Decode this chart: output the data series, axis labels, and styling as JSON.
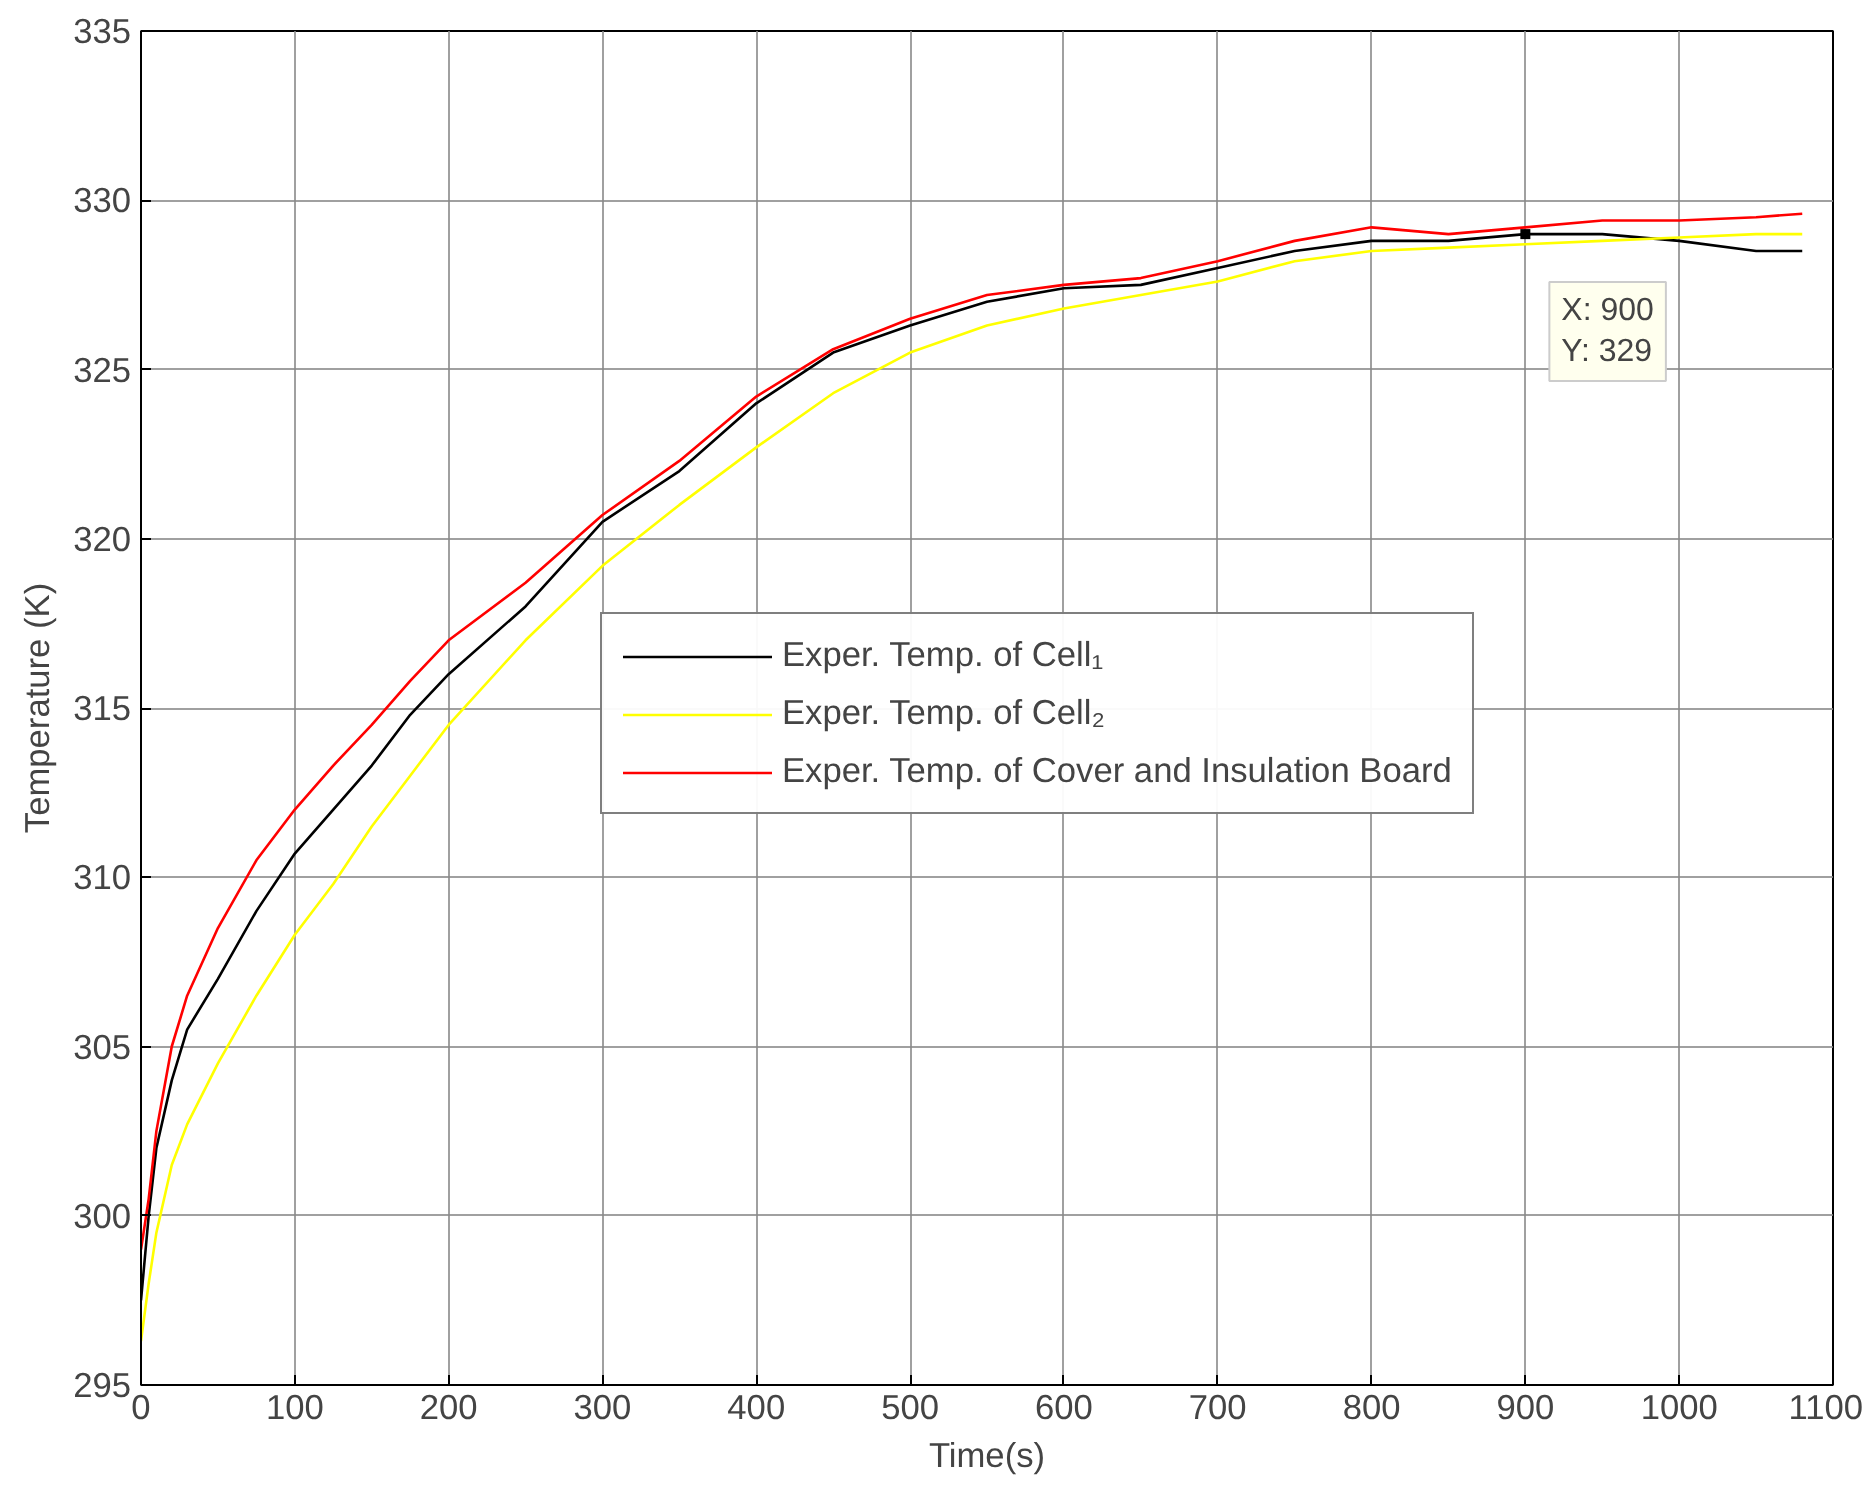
{
  "chart_data": {
    "type": "line",
    "xlabel": "Time(s)",
    "ylabel": "Temperature (K)",
    "x": [
      0,
      5,
      10,
      20,
      30,
      50,
      75,
      100,
      125,
      150,
      175,
      200,
      250,
      300,
      350,
      400,
      450,
      500,
      550,
      600,
      650,
      700,
      750,
      800,
      850,
      900,
      950,
      1000,
      1050,
      1080
    ],
    "series": [
      {
        "name": "Exper. Temp. of Cell₁",
        "color": "#000000",
        "values": [
          297.5,
          300,
          302,
          304,
          305.5,
          307,
          309,
          310.7,
          312,
          313.3,
          314.8,
          316,
          318,
          320.5,
          322,
          324,
          325.5,
          326.3,
          327,
          327.4,
          327.5,
          328,
          328.5,
          328.8,
          328.8,
          329,
          329,
          328.8,
          328.5,
          328.5
        ]
      },
      {
        "name": "Exper. Temp. of Cell₂",
        "color": "#ffff00",
        "values": [
          296.3,
          298,
          299.5,
          301.5,
          302.7,
          304.5,
          306.5,
          308.3,
          309.8,
          311.5,
          313,
          314.5,
          317,
          319.2,
          321,
          322.7,
          324.3,
          325.5,
          326.3,
          326.8,
          327.2,
          327.6,
          328.2,
          328.5,
          328.6,
          328.7,
          328.8,
          328.9,
          329,
          329
        ]
      },
      {
        "name": "Exper. Temp. of Cover and Insulation Board",
        "color": "#ff0000",
        "values": [
          299,
          300.5,
          302.5,
          305,
          306.5,
          308.5,
          310.5,
          312,
          313.3,
          314.5,
          315.8,
          317,
          318.7,
          320.7,
          322.3,
          324.2,
          325.6,
          326.5,
          327.2,
          327.5,
          327.7,
          328.2,
          328.8,
          329.2,
          329,
          329.2,
          329.4,
          329.4,
          329.5,
          329.6
        ]
      }
    ],
    "annotations": [
      {
        "text": "X: 900\nY: 329",
        "x": 900,
        "y": 329
      }
    ],
    "xlim": [
      0,
      1100
    ],
    "xticks": [
      0,
      100,
      200,
      300,
      400,
      500,
      600,
      700,
      800,
      900,
      1000,
      1100
    ],
    "ylim": [
      295,
      335
    ],
    "yticks": [
      295,
      300,
      305,
      310,
      315,
      320,
      325,
      330,
      335
    ],
    "grid": true,
    "legend": "center right",
    "line_style": "solid",
    "marker": "none"
  }
}
